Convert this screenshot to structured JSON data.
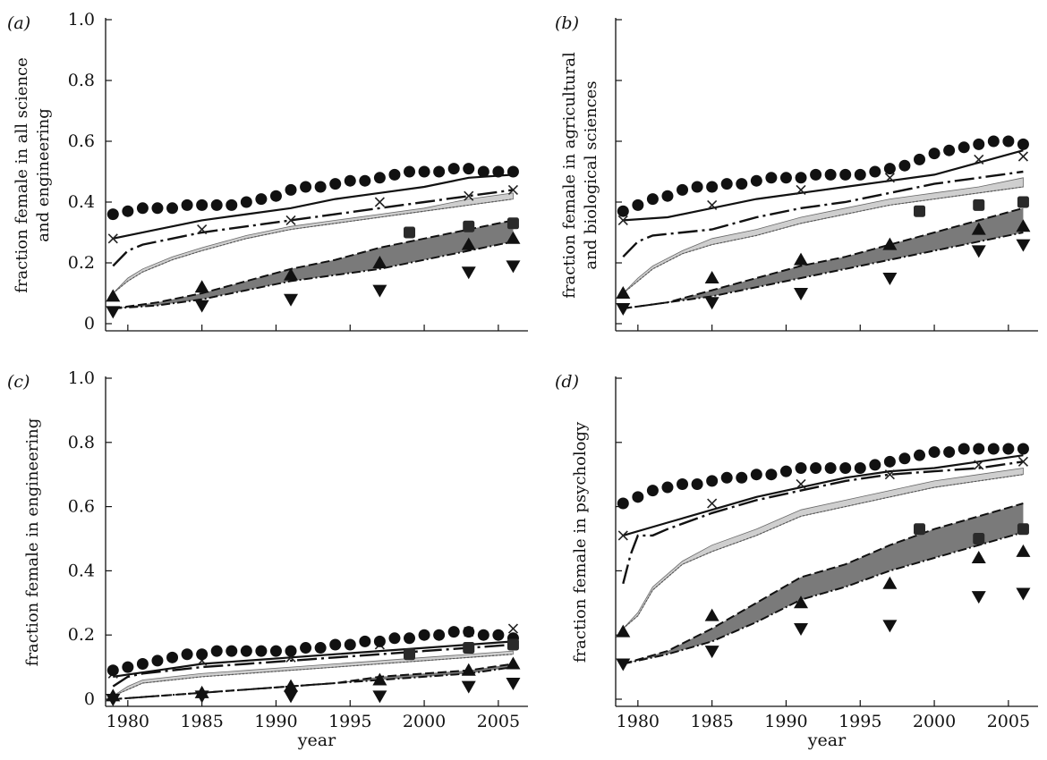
{
  "chart_data": [
    {
      "type": "line",
      "panel": "(a)",
      "ylabel": "fraction female in all science and engineering",
      "ylabel_lines": [
        "fraction female in all science",
        "and engineering"
      ],
      "xlabel": "",
      "ylim": [
        0,
        1.0
      ],
      "xlim": [
        1978.5,
        2007
      ],
      "yticks": [
        "0",
        "0.2",
        "0.4",
        "0.6",
        "0.8",
        "1.0"
      ],
      "xticks": [],
      "grid": false,
      "circles": {
        "x": [
          1979,
          1980,
          1981,
          1982,
          1983,
          1984,
          1985,
          1986,
          1987,
          1988,
          1989,
          1990,
          1991,
          1992,
          1993,
          1994,
          1995,
          1996,
          1997,
          1998,
          1999,
          2000,
          2001,
          2002,
          2003,
          2004,
          2005,
          2006
        ],
        "y": [
          0.36,
          0.37,
          0.38,
          0.38,
          0.38,
          0.39,
          0.39,
          0.39,
          0.39,
          0.4,
          0.41,
          0.42,
          0.44,
          0.45,
          0.45,
          0.46,
          0.47,
          0.47,
          0.48,
          0.49,
          0.5,
          0.5,
          0.5,
          0.51,
          0.51,
          0.5,
          0.5,
          0.5
        ]
      },
      "x_markers": {
        "x": [
          1979,
          1985,
          1991,
          1997,
          2003,
          2006
        ],
        "y": [
          0.28,
          0.31,
          0.34,
          0.4,
          0.42,
          0.44
        ]
      },
      "solid_line": {
        "x": [
          1979,
          1982,
          1985,
          1988,
          1991,
          1994,
          1997,
          2000,
          2003,
          2006
        ],
        "y": [
          0.28,
          0.31,
          0.34,
          0.36,
          0.38,
          0.41,
          0.43,
          0.45,
          0.48,
          0.49
        ]
      },
      "dashed_line": {
        "x": [
          1979,
          1980,
          1981,
          1983,
          1985,
          1988,
          1991,
          1994,
          1997,
          2000,
          2003,
          2006
        ],
        "y": [
          0.19,
          0.24,
          0.26,
          0.28,
          0.3,
          0.32,
          0.34,
          0.36,
          0.38,
          0.4,
          0.42,
          0.44
        ]
      },
      "light_band": {
        "x": [
          1979,
          1980,
          1981,
          1983,
          1985,
          1988,
          1991,
          1994,
          1997,
          2000,
          2003,
          2006
        ],
        "lower": [
          0.1,
          0.14,
          0.17,
          0.21,
          0.24,
          0.28,
          0.31,
          0.33,
          0.35,
          0.37,
          0.39,
          0.41
        ],
        "upper": [
          0.1,
          0.15,
          0.18,
          0.22,
          0.25,
          0.29,
          0.32,
          0.34,
          0.36,
          0.38,
          0.41,
          0.43
        ]
      },
      "dark_band": {
        "x": [
          1979,
          1982,
          1985,
          1988,
          1991,
          1994,
          1997,
          2000,
          2003,
          2006
        ],
        "lower": [
          0.05,
          0.06,
          0.08,
          0.11,
          0.14,
          0.16,
          0.18,
          0.21,
          0.24,
          0.27
        ],
        "upper": [
          0.05,
          0.07,
          0.1,
          0.14,
          0.18,
          0.21,
          0.25,
          0.28,
          0.31,
          0.34
        ]
      },
      "squares": {
        "x": [
          1999,
          2003,
          2006
        ],
        "y": [
          0.3,
          0.32,
          0.33
        ]
      },
      "triangles_up": {
        "x": [
          1979,
          1985,
          1991,
          1997,
          2003,
          2006
        ],
        "y": [
          0.09,
          0.12,
          0.16,
          0.2,
          0.26,
          0.28
        ]
      },
      "triangles_down": {
        "x": [
          1979,
          1985,
          1991,
          1997,
          2003,
          2006
        ],
        "y": [
          0.04,
          0.06,
          0.08,
          0.11,
          0.17,
          0.19
        ]
      }
    },
    {
      "type": "line",
      "panel": "(b)",
      "ylabel": "fraction female in agricultural and biological sciences",
      "ylabel_lines": [
        "fraction female in agricultural",
        "and biological sciences"
      ],
      "xlabel": "",
      "ylim": [
        0,
        1.0
      ],
      "xlim": [
        1978.5,
        2007
      ],
      "yticks": [],
      "xticks": [],
      "grid": false,
      "circles": {
        "x": [
          1979,
          1980,
          1981,
          1982,
          1983,
          1984,
          1985,
          1986,
          1987,
          1988,
          1989,
          1990,
          1991,
          1992,
          1993,
          1994,
          1995,
          1996,
          1997,
          1998,
          1999,
          2000,
          2001,
          2002,
          2003,
          2004,
          2005,
          2006
        ],
        "y": [
          0.37,
          0.39,
          0.41,
          0.42,
          0.44,
          0.45,
          0.45,
          0.46,
          0.46,
          0.47,
          0.48,
          0.48,
          0.48,
          0.49,
          0.49,
          0.49,
          0.49,
          0.5,
          0.51,
          0.52,
          0.54,
          0.56,
          0.57,
          0.58,
          0.59,
          0.6,
          0.6,
          0.59
        ]
      },
      "x_markers": {
        "x": [
          1979,
          1985,
          1991,
          1997,
          2003,
          2006
        ],
        "y": [
          0.34,
          0.39,
          0.44,
          0.48,
          0.54,
          0.55
        ]
      },
      "solid_line": {
        "x": [
          1979,
          1982,
          1985,
          1988,
          1991,
          1994,
          1997,
          2000,
          2003,
          2006
        ],
        "y": [
          0.34,
          0.35,
          0.38,
          0.41,
          0.43,
          0.45,
          0.47,
          0.49,
          0.53,
          0.57
        ]
      },
      "dashed_line": {
        "x": [
          1979,
          1980,
          1981,
          1983,
          1985,
          1988,
          1991,
          1994,
          1997,
          2000,
          2003,
          2006
        ],
        "y": [
          0.22,
          0.27,
          0.29,
          0.3,
          0.31,
          0.35,
          0.38,
          0.4,
          0.43,
          0.46,
          0.48,
          0.5
        ]
      },
      "light_band": {
        "x": [
          1979,
          1980,
          1981,
          1983,
          1985,
          1988,
          1991,
          1994,
          1997,
          2000,
          2003,
          2006
        ],
        "lower": [
          0.1,
          0.14,
          0.18,
          0.23,
          0.26,
          0.29,
          0.33,
          0.36,
          0.39,
          0.41,
          0.43,
          0.45
        ],
        "upper": [
          0.1,
          0.15,
          0.19,
          0.24,
          0.28,
          0.31,
          0.35,
          0.38,
          0.41,
          0.43,
          0.45,
          0.48
        ]
      },
      "dark_band": {
        "x": [
          1979,
          1982,
          1985,
          1988,
          1991,
          1994,
          1997,
          2000,
          2003,
          2006
        ],
        "lower": [
          0.05,
          0.07,
          0.09,
          0.12,
          0.15,
          0.18,
          0.21,
          0.24,
          0.27,
          0.3
        ],
        "upper": [
          0.05,
          0.07,
          0.11,
          0.15,
          0.19,
          0.22,
          0.26,
          0.3,
          0.34,
          0.38
        ]
      },
      "squares": {
        "x": [
          1999,
          2003,
          2006
        ],
        "y": [
          0.37,
          0.39,
          0.4
        ]
      },
      "triangles_up": {
        "x": [
          1979,
          1985,
          1991,
          1997,
          2003,
          2006
        ],
        "y": [
          0.1,
          0.15,
          0.21,
          0.26,
          0.31,
          0.32
        ]
      },
      "triangles_down": {
        "x": [
          1979,
          1985,
          1991,
          1997,
          2003,
          2006
        ],
        "y": [
          0.05,
          0.07,
          0.1,
          0.15,
          0.24,
          0.26
        ]
      }
    },
    {
      "type": "line",
      "panel": "(c)",
      "ylabel": "fraction female in engineering",
      "ylabel_lines": [
        "fraction female in engineering"
      ],
      "xlabel": "year",
      "ylim": [
        0,
        1.0
      ],
      "xlim": [
        1978.5,
        2007
      ],
      "yticks": [
        "0",
        "0.2",
        "0.4",
        "0.6",
        "0.8",
        "1.0"
      ],
      "xticks": [
        "1980",
        "1985",
        "1990",
        "1995",
        "2000",
        "2005"
      ],
      "grid": false,
      "circles": {
        "x": [
          1979,
          1980,
          1981,
          1982,
          1983,
          1984,
          1985,
          1986,
          1987,
          1988,
          1989,
          1990,
          1991,
          1992,
          1993,
          1994,
          1995,
          1996,
          1997,
          1998,
          1999,
          2000,
          2001,
          2002,
          2003,
          2004,
          2005,
          2006
        ],
        "y": [
          0.09,
          0.1,
          0.11,
          0.12,
          0.13,
          0.14,
          0.14,
          0.15,
          0.15,
          0.15,
          0.15,
          0.15,
          0.15,
          0.16,
          0.16,
          0.17,
          0.17,
          0.18,
          0.18,
          0.19,
          0.19,
          0.2,
          0.2,
          0.21,
          0.21,
          0.2,
          0.2,
          0.19
        ]
      },
      "x_markers": {
        "x": [
          1979,
          1985,
          1991,
          1997,
          2003,
          2006
        ],
        "y": [
          0.08,
          0.12,
          0.13,
          0.17,
          0.21,
          0.22
        ]
      },
      "solid_line": {
        "x": [
          1979,
          1982,
          1985,
          1988,
          1991,
          1994,
          1997,
          2000,
          2003,
          2006
        ],
        "y": [
          0.07,
          0.09,
          0.11,
          0.12,
          0.13,
          0.14,
          0.15,
          0.16,
          0.17,
          0.18
        ]
      },
      "dashed_line": {
        "x": [
          1979,
          1980,
          1981,
          1983,
          1985,
          1988,
          1991,
          1994,
          1997,
          2000,
          2003,
          2006
        ],
        "y": [
          0.04,
          0.07,
          0.08,
          0.09,
          0.1,
          0.11,
          0.12,
          0.13,
          0.14,
          0.15,
          0.16,
          0.17
        ]
      },
      "light_band": {
        "x": [
          1979,
          1980,
          1981,
          1983,
          1985,
          1988,
          1991,
          1994,
          1997,
          2000,
          2003,
          2006
        ],
        "lower": [
          0.01,
          0.03,
          0.05,
          0.06,
          0.07,
          0.08,
          0.09,
          0.1,
          0.11,
          0.12,
          0.13,
          0.14
        ],
        "upper": [
          0.01,
          0.04,
          0.06,
          0.07,
          0.08,
          0.09,
          0.1,
          0.11,
          0.12,
          0.13,
          0.14,
          0.15
        ]
      },
      "dark_band": {
        "x": [
          1979,
          1982,
          1985,
          1988,
          1991,
          1994,
          1997,
          2000,
          2003,
          2006
        ],
        "lower": [
          0.0,
          0.01,
          0.02,
          0.03,
          0.04,
          0.05,
          0.06,
          0.07,
          0.08,
          0.1
        ],
        "upper": [
          0.0,
          0.01,
          0.02,
          0.03,
          0.04,
          0.05,
          0.07,
          0.08,
          0.09,
          0.11
        ]
      },
      "squares": {
        "x": [
          1999,
          2003,
          2006
        ],
        "y": [
          0.14,
          0.16,
          0.17
        ]
      },
      "triangles_up": {
        "x": [
          1979,
          1985,
          1991,
          1997,
          2003,
          2006
        ],
        "y": [
          0.01,
          0.02,
          0.04,
          0.06,
          0.09,
          0.11
        ]
      },
      "triangles_down": {
        "x": [
          1979,
          1985,
          1991,
          1997,
          2003,
          2006
        ],
        "y": [
          0.0,
          0.01,
          0.01,
          0.01,
          0.04,
          0.05
        ]
      }
    },
    {
      "type": "line",
      "panel": "(d)",
      "ylabel": "fraction female in psychology",
      "ylabel_lines": [
        "fraction female in psychology"
      ],
      "xlabel": "year",
      "ylim": [
        0,
        1.0
      ],
      "xlim": [
        1978.5,
        2007
      ],
      "yticks": [],
      "xticks": [
        "1980",
        "1985",
        "1990",
        "1995",
        "2000",
        "2005"
      ],
      "grid": false,
      "circles": {
        "x": [
          1979,
          1980,
          1981,
          1982,
          1983,
          1984,
          1985,
          1986,
          1987,
          1988,
          1989,
          1990,
          1991,
          1992,
          1993,
          1994,
          1995,
          1996,
          1997,
          1998,
          1999,
          2000,
          2001,
          2002,
          2003,
          2004,
          2005,
          2006
        ],
        "y": [
          0.61,
          0.63,
          0.65,
          0.66,
          0.67,
          0.67,
          0.68,
          0.69,
          0.69,
          0.7,
          0.7,
          0.71,
          0.72,
          0.72,
          0.72,
          0.72,
          0.72,
          0.73,
          0.74,
          0.75,
          0.76,
          0.77,
          0.77,
          0.78,
          0.78,
          0.78,
          0.78,
          0.78
        ]
      },
      "x_markers": {
        "x": [
          1979,
          1985,
          1991,
          1997,
          2003,
          2006
        ],
        "y": [
          0.51,
          0.61,
          0.67,
          0.7,
          0.73,
          0.74
        ]
      },
      "solid_line": {
        "x": [
          1979,
          1982,
          1985,
          1988,
          1991,
          1994,
          1997,
          2000,
          2003,
          2006
        ],
        "y": [
          0.51,
          0.55,
          0.59,
          0.63,
          0.66,
          0.69,
          0.71,
          0.72,
          0.74,
          0.76
        ]
      },
      "dashed_line": {
        "x": [
          1979,
          1979.5,
          1980,
          1981,
          1982,
          1985,
          1988,
          1991,
          1994,
          1997,
          2000,
          2003,
          2006
        ],
        "y": [
          0.36,
          0.45,
          0.51,
          0.51,
          0.53,
          0.58,
          0.62,
          0.65,
          0.68,
          0.7,
          0.71,
          0.72,
          0.74
        ]
      },
      "light_band": {
        "x": [
          1979,
          1980,
          1981,
          1983,
          1985,
          1988,
          1991,
          1994,
          1997,
          2000,
          2003,
          2006
        ],
        "lower": [
          0.22,
          0.26,
          0.34,
          0.42,
          0.46,
          0.51,
          0.57,
          0.6,
          0.63,
          0.66,
          0.68,
          0.7
        ],
        "upper": [
          0.22,
          0.27,
          0.35,
          0.43,
          0.48,
          0.53,
          0.59,
          0.62,
          0.65,
          0.68,
          0.7,
          0.72
        ]
      },
      "dark_band": {
        "x": [
          1979,
          1982,
          1985,
          1988,
          1991,
          1994,
          1997,
          2000,
          2003,
          2006
        ],
        "lower": [
          0.11,
          0.14,
          0.18,
          0.24,
          0.31,
          0.35,
          0.4,
          0.44,
          0.48,
          0.52
        ],
        "upper": [
          0.11,
          0.15,
          0.22,
          0.3,
          0.38,
          0.42,
          0.48,
          0.53,
          0.57,
          0.61
        ]
      },
      "squares": {
        "x": [
          1999,
          2003,
          2006
        ],
        "y": [
          0.53,
          0.5,
          0.53
        ]
      },
      "triangles_up": {
        "x": [
          1979,
          1985,
          1991,
          1997,
          2003,
          2006
        ],
        "y": [
          0.21,
          0.26,
          0.3,
          0.36,
          0.44,
          0.46
        ]
      },
      "triangles_down": {
        "x": [
          1979,
          1985,
          1991,
          1997,
          2003,
          2006
        ],
        "y": [
          0.11,
          0.15,
          0.22,
          0.23,
          0.32,
          0.33
        ]
      }
    }
  ]
}
